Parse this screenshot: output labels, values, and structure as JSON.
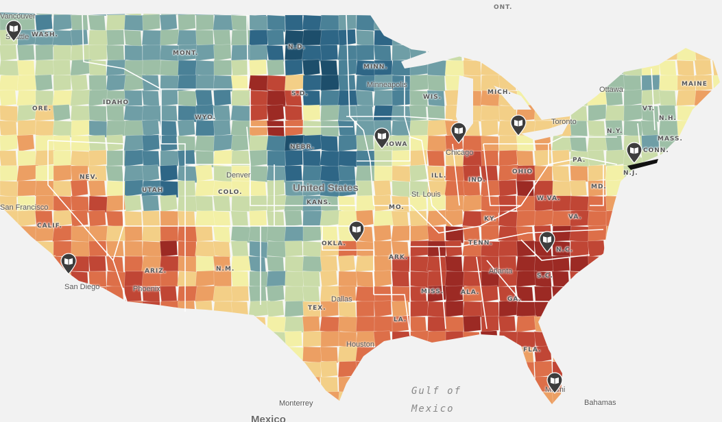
{
  "colors": {
    "background": "#f2f2f2",
    "land_default": "#f7f7f4",
    "scale": [
      "#1d4e6b",
      "#2e6686",
      "#4a8197",
      "#6f9ea6",
      "#9dbfa6",
      "#cadca9",
      "#f3f0a6",
      "#f3cf87",
      "#ec9f63",
      "#dd6f49",
      "#c04635",
      "#9c2a24"
    ],
    "pin": "#3d3d3d"
  },
  "country_labels": [
    {
      "id": "united-states",
      "text": "United States"
    },
    {
      "id": "mexico",
      "text": "Mexico"
    },
    {
      "id": "ont",
      "text": "ONT."
    }
  ],
  "water_labels": [
    {
      "id": "gulf-line1",
      "text": "Gulf of"
    },
    {
      "id": "gulf-line2",
      "text": "Mexico"
    }
  ],
  "state_labels": [
    "WASH.",
    "MONT.",
    "N.D.",
    "MINN.",
    "IDAHO",
    "ORE.",
    "S.D.",
    "WYO.",
    "WIS.",
    "MICH.",
    "NEBR.",
    "NEV.",
    "UTAH",
    "COLO.",
    "KANS.",
    "IOWA",
    "ILL.",
    "IND.",
    "OHIO",
    "CALIF.",
    "MO.",
    "KY.",
    "W.VA.",
    "VA.",
    "PA.",
    "N.Y.",
    "MAINE",
    "VT.",
    "N.H.",
    "MASS.",
    "CONN.",
    "N.J.",
    "MD.",
    "OKLA.",
    "ARK.",
    "TENN.",
    "N.C.",
    "S.C.",
    "ARIZ.",
    "N.M.",
    "TEX.",
    "MISS.",
    "ALA.",
    "GA.",
    "LA.",
    "FLA."
  ],
  "city_labels": [
    "Seattle",
    "Vancouver",
    "Minneapolis",
    "Ottawa",
    "Toronto",
    "Chicago",
    "Denver",
    "St. Louis",
    "San Francisco",
    "San Diego",
    "Phoenix",
    "Dallas",
    "Atlanta",
    "Houston",
    "Miami",
    "Monterrey",
    "Bahamas"
  ],
  "pins": [
    {
      "id": "seattle",
      "icon": "book-icon"
    },
    {
      "id": "san-diego",
      "icon": "book-icon"
    },
    {
      "id": "iowa",
      "icon": "book-icon"
    },
    {
      "id": "chicago",
      "icon": "book-icon"
    },
    {
      "id": "michigan",
      "icon": "book-icon"
    },
    {
      "id": "new-york",
      "icon": "book-icon"
    },
    {
      "id": "oklahoma",
      "icon": "book-icon"
    },
    {
      "id": "north-carolina",
      "icon": "book-icon"
    },
    {
      "id": "miami",
      "icon": "book-icon"
    }
  ]
}
